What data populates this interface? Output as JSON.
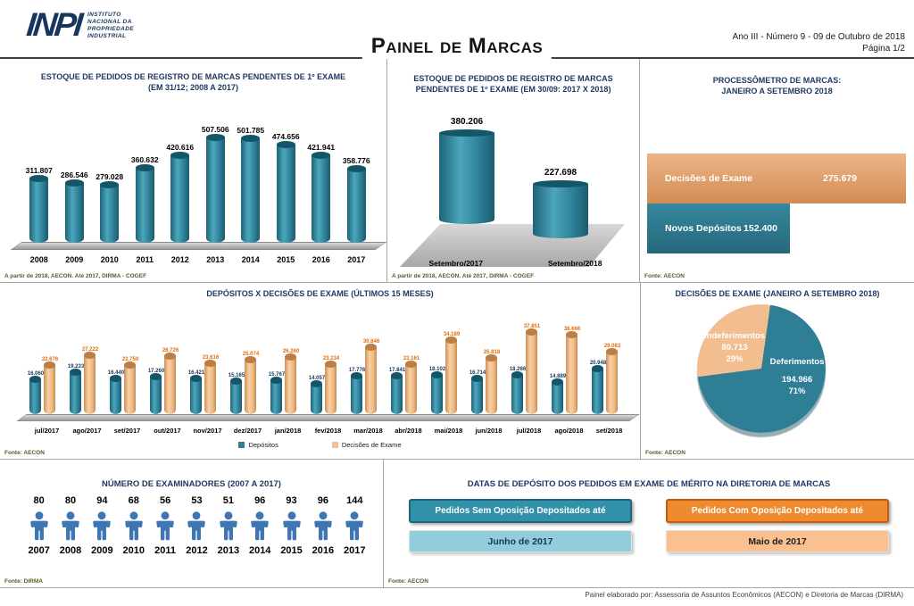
{
  "header": {
    "logo_acronym": "INPI",
    "logo_lines": [
      "INSTITUTO",
      "NACIONAL DA",
      "PROPRIEDADE",
      "INDUSTRIAL"
    ],
    "title": "Painel de Marcas",
    "edition": "Ano III - Número 9 - 09 de Outubro de 2018",
    "page": "Página 1/2"
  },
  "colors": {
    "teal": "#2E8098",
    "tan": "#F4BE92",
    "orange_label": "#E36C0A",
    "navy_label": "#17365D",
    "pie_teal": "#2E7E95",
    "pie_tan": "#F2BE8F",
    "examiner_blue": "#3E76B5"
  },
  "chart_data": [
    {
      "id": "estoque_anual",
      "type": "bar",
      "title_lines": [
        "ESTOQUE DE PEDIDOS DE REGISTRO DE MARCAS PENDENTES DE 1º EXAME",
        "(EM 31/12; 2008 A 2017)"
      ],
      "categories": [
        "2008",
        "2009",
        "2010",
        "2011",
        "2012",
        "2013",
        "2014",
        "2015",
        "2016",
        "2017"
      ],
      "values": [
        311807,
        286546,
        279028,
        360632,
        420616,
        507506,
        501785,
        474656,
        421941,
        358776
      ],
      "labels": [
        "311.807",
        "286.546",
        "279.028",
        "360.632",
        "420.616",
        "507.506",
        "501.785",
        "474.656",
        "421.941",
        "358.776"
      ],
      "ylim": [
        0,
        507506
      ],
      "source": "A partir de 2018, AECON. Até 2017, DIRMA - COGEF"
    },
    {
      "id": "estoque_comparativo",
      "type": "bar",
      "title_lines": [
        "ESTOQUE DE PEDIDOS DE REGISTRO DE MARCAS",
        "PENDENTES DE 1º EXAME (EM 30/09: 2017 X 2018)"
      ],
      "categories": [
        "Setembro/2017",
        "Setembro/2018"
      ],
      "values": [
        380206,
        227698
      ],
      "labels": [
        "380.206",
        "227.698"
      ],
      "source": "A partir de 2018, AECON. Até 2017, DIRMA - COGEF"
    },
    {
      "id": "processometro",
      "type": "bar",
      "orientation": "horizontal",
      "title_lines": [
        "PROCESSÔMETRO DE MARCAS:",
        "JANEIRO A SETEMBRO 2018"
      ],
      "categories": [
        "Decisões de Exame",
        "Novos Depósitos"
      ],
      "values": [
        275679,
        152400
      ],
      "labels": [
        "275.679",
        "152.400"
      ],
      "source": "Fonte: AECON"
    },
    {
      "id": "depositos_x_decisoes",
      "type": "bar",
      "title_lines": [
        "DEPÓSITOS X DECISÕES DE EXAME (ÚLTIMOS 15 MESES)"
      ],
      "categories": [
        "jul/2017",
        "ago/2017",
        "set/2017",
        "out/2017",
        "nov/2017",
        "dez/2017",
        "jan/2018",
        "fev/2018",
        "mar/2018",
        "abr/2018",
        "mai/2018",
        "jun/2018",
        "jul/2018",
        "ago/2018",
        "set/2018"
      ],
      "series": [
        {
          "name": "Depósitos",
          "values": [
            16060,
            19233,
            16440,
            17260,
            16421,
            15165,
            15767,
            14057,
            17776,
            17841,
            18102,
            16714,
            18266,
            14889,
            20948
          ],
          "labels": [
            "16.060",
            "19.233",
            "16.440",
            "17.260",
            "16.421",
            "15.165",
            "15.767",
            "14.057",
            "17.776",
            "17.841",
            "18.102",
            "16.714",
            "18.266",
            "14.889",
            "20.948"
          ]
        },
        {
          "name": "Decisões de Exame",
          "values": [
            22676,
            27222,
            22750,
            26726,
            23616,
            25074,
            26260,
            23234,
            30846,
            23161,
            34189,
            25818,
            37851,
            36666,
            29083
          ],
          "labels": [
            "22.676",
            "27.222",
            "22.750",
            "26.726",
            "23.616",
            "25.074",
            "26.260",
            "23.234",
            "30.846",
            "23.161",
            "34.189",
            "25.818",
            "37.851",
            "36.666",
            "29.083"
          ]
        }
      ],
      "ylim": [
        0,
        38000
      ],
      "legend_position": "bottom",
      "source": "Fonte: AECON"
    },
    {
      "id": "decisoes_pie",
      "type": "pie",
      "title_lines": [
        "DECISÕES DE EXAME (JANEIRO A SETEMBRO 2018)"
      ],
      "slices": [
        {
          "label": "Deferimentos",
          "value": 194966,
          "display": "194.966",
          "pct": "71%",
          "color": "#2E7E95"
        },
        {
          "label": "Indeferimentos",
          "value": 80713,
          "display": "80.713",
          "pct": "29%",
          "color": "#F2BE8F"
        }
      ],
      "start_angle_deg": 8,
      "source": "Fonte: AECON"
    },
    {
      "id": "examinadores",
      "type": "bar",
      "subtype": "pictogram",
      "title_lines": [
        "NÚMERO DE EXAMINADORES (2007 A 2017)"
      ],
      "categories": [
        "2007",
        "2008",
        "2009",
        "2010",
        "2011",
        "2012",
        "2013",
        "2014",
        "2015",
        "2016",
        "2017"
      ],
      "values": [
        80,
        80,
        94,
        68,
        56,
        53,
        51,
        96,
        93,
        96,
        144
      ],
      "source": "Fonte: DIRMA"
    }
  ],
  "datas_panel": {
    "title": "DATAS DE DEPÓSITO DOS PEDIDOS EM EXAME DE MÉRITO NA DIRETORIA DE MARCAS",
    "cards": [
      {
        "header": "Pedidos Sem Oposição Depositados até",
        "value": "Junho de 2017"
      },
      {
        "header": "Pedidos Com Oposição Depositados até",
        "value": "Maio de 2017"
      }
    ],
    "source": "Fonte: AECON"
  },
  "footer_note": "Painel elaborado por: Assessoria de Assuntos Econômicos (AECON) e Diretoria de Marcas (DIRMA)"
}
